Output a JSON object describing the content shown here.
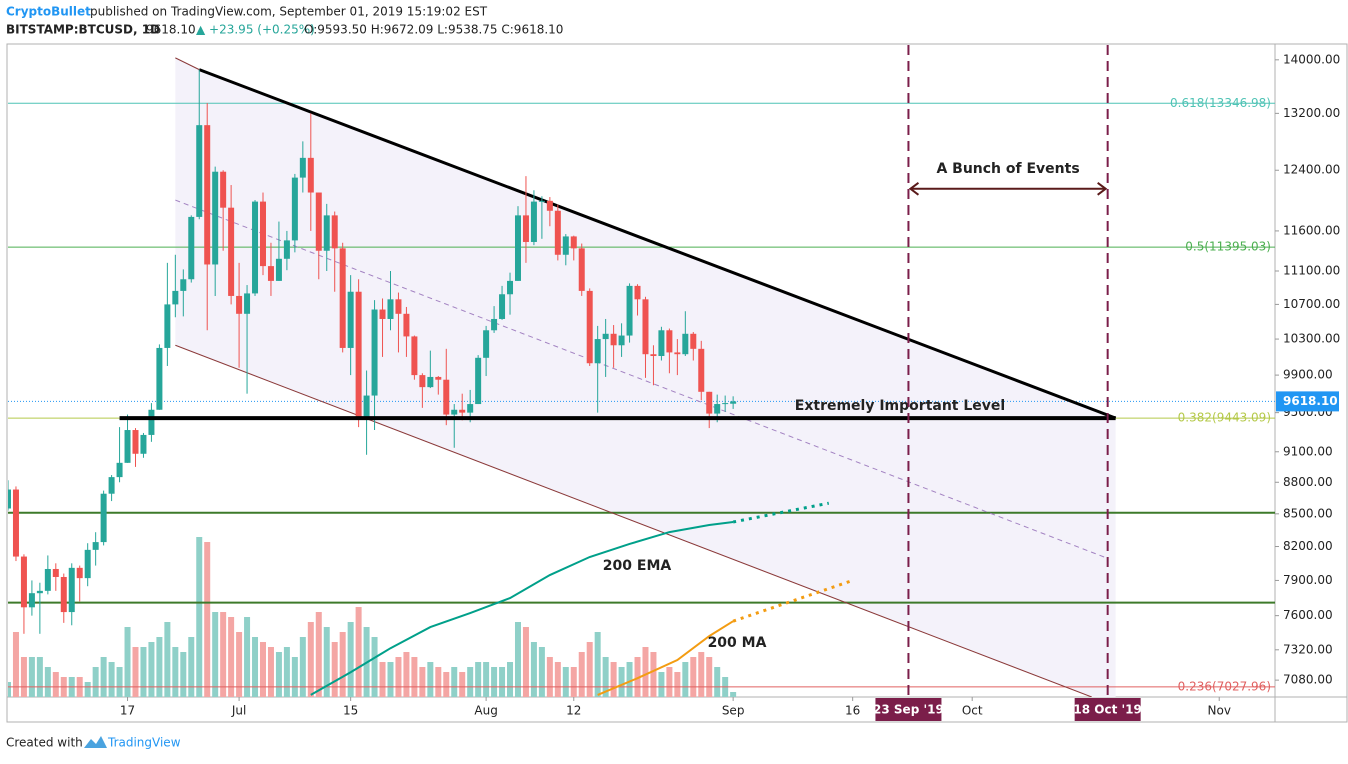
{
  "chart_data": {
    "type": "candlestick",
    "header": {
      "author": "CryptoBullet",
      "published": "published on TradingView.com, September 01, 2019 15:19:02 EST",
      "symbol": "BITSTAMP:BTCUSD, 1D",
      "last": "9618.10",
      "change": "▲ +23.95 (+0.25%)",
      "ohlc": "O:9593.50 H:9672.09 L:9538.75 C:9618.10"
    },
    "footer": {
      "prefix": "Created with",
      "brand": "TradingView"
    },
    "x": [
      "2019-06-02",
      "2019-06-03",
      "2019-06-04",
      "2019-06-05",
      "2019-06-06",
      "2019-06-07",
      "2019-06-08",
      "2019-06-09",
      "2019-06-10",
      "2019-06-11",
      "2019-06-12",
      "2019-06-13",
      "2019-06-14",
      "2019-06-15",
      "2019-06-16",
      "2019-06-17",
      "2019-06-18",
      "2019-06-19",
      "2019-06-20",
      "2019-06-21",
      "2019-06-22",
      "2019-06-23",
      "2019-06-24",
      "2019-06-25",
      "2019-06-26",
      "2019-06-27",
      "2019-06-28",
      "2019-06-29",
      "2019-06-30",
      "2019-07-01",
      "2019-07-02",
      "2019-07-03",
      "2019-07-04",
      "2019-07-05",
      "2019-07-06",
      "2019-07-07",
      "2019-07-08",
      "2019-07-09",
      "2019-07-10",
      "2019-07-11",
      "2019-07-12",
      "2019-07-13",
      "2019-07-14",
      "2019-07-15",
      "2019-07-16",
      "2019-07-17",
      "2019-07-18",
      "2019-07-19",
      "2019-07-20",
      "2019-07-21",
      "2019-07-22",
      "2019-07-23",
      "2019-07-24",
      "2019-07-25",
      "2019-07-26",
      "2019-07-27",
      "2019-07-28",
      "2019-07-29",
      "2019-07-30",
      "2019-07-31",
      "2019-08-01",
      "2019-08-02",
      "2019-08-03",
      "2019-08-04",
      "2019-08-05",
      "2019-08-06",
      "2019-08-07",
      "2019-08-08",
      "2019-08-09",
      "2019-08-10",
      "2019-08-11",
      "2019-08-12",
      "2019-08-13",
      "2019-08-14",
      "2019-08-15",
      "2019-08-16",
      "2019-08-17",
      "2019-08-18",
      "2019-08-19",
      "2019-08-20",
      "2019-08-21",
      "2019-08-22",
      "2019-08-23",
      "2019-08-24",
      "2019-08-25",
      "2019-08-26",
      "2019-08-27",
      "2019-08-28",
      "2019-08-29",
      "2019-08-30",
      "2019-08-31",
      "2019-09-01"
    ],
    "open": [
      8550,
      8730,
      8110,
      7670,
      7790,
      7810,
      8000,
      7930,
      7630,
      8010,
      7920,
      8170,
      8240,
      8690,
      8850,
      8990,
      9320,
      9080,
      9270,
      9530,
      10200,
      10700,
      10860,
      11000,
      11780,
      13030,
      11180,
      12380,
      11900,
      10800,
      10590,
      10830,
      11980,
      11160,
      10980,
      11250,
      11480,
      12300,
      12570,
      12100,
      11350,
      11800,
      11380,
      10200,
      10850,
      9430,
      9680,
      10640,
      10530,
      10760,
      10590,
      10330,
      9900,
      9770,
      9880,
      9850,
      9480,
      9530,
      9500,
      9590,
      10090,
      10400,
      10530,
      10820,
      10980,
      11800,
      11460,
      11980,
      11990,
      11860,
      11300,
      11530,
      11380,
      10860,
      10030,
      10300,
      10360,
      10230,
      10340,
      10920,
      10760,
      10130,
      10110,
      10400,
      10150,
      10130,
      10360,
      10190,
      9720,
      9490,
      9590,
      9593.5
    ],
    "high": [
      8820,
      8760,
      8130,
      7900,
      7880,
      8120,
      8050,
      7960,
      8050,
      8030,
      8230,
      8330,
      8720,
      8870,
      9350,
      9480,
      9340,
      9290,
      9600,
      10240,
      11200,
      11300,
      11120,
      11800,
      13850,
      13350,
      12450,
      12400,
      12200,
      11200,
      10930,
      12000,
      12100,
      11450,
      11720,
      11600,
      12350,
      12800,
      13200,
      12100,
      11950,
      11850,
      11450,
      11050,
      11000,
      9950,
      10750,
      10770,
      11100,
      10840,
      10670,
      10340,
      9920,
      10170,
      9890,
      10190,
      9590,
      9700,
      9740,
      10120,
      10450,
      10680,
      10920,
      11080,
      11920,
      12320,
      12130,
      12050,
      12040,
      11940,
      11560,
      11540,
      11440,
      10890,
      10450,
      10530,
      10460,
      10480,
      10950,
      10940,
      10790,
      10230,
      10440,
      10420,
      10300,
      10620,
      10380,
      10280,
      9720,
      9690,
      9680,
      9672.09
    ],
    "low": [
      8530,
      8070,
      7450,
      7600,
      7450,
      7780,
      7810,
      7540,
      7520,
      7720,
      7850,
      8030,
      8210,
      8620,
      8800,
      8990,
      8950,
      9040,
      9200,
      9530,
      10000,
      10550,
      10560,
      10960,
      11750,
      10400,
      10800,
      11350,
      10700,
      9980,
      9700,
      10800,
      11050,
      10800,
      10980,
      11110,
      11330,
      12100,
      11600,
      11000,
      11100,
      10850,
      10150,
      9900,
      9350,
      9070,
      9320,
      10100,
      10400,
      10150,
      10100,
      9850,
      9550,
      9760,
      9690,
      9370,
      9140,
      9420,
      9400,
      9590,
      9890,
      10370,
      10520,
      10580,
      10980,
      11200,
      11420,
      11500,
      11660,
      11230,
      11170,
      11230,
      10800,
      10000,
      9500,
      9880,
      9980,
      10100,
      10260,
      10570,
      9870,
      9790,
      10060,
      9920,
      9900,
      10110,
      10060,
      9630,
      9340,
      9400,
      9510,
      9538.75
    ],
    "close": [
      8730,
      8110,
      7670,
      7790,
      7810,
      8000,
      7930,
      7630,
      8010,
      7920,
      8170,
      8240,
      8690,
      8850,
      8990,
      9320,
      9080,
      9270,
      9530,
      10200,
      10700,
      10860,
      11000,
      11780,
      13030,
      11180,
      12380,
      11900,
      10800,
      10590,
      10830,
      11980,
      11160,
      10980,
      11250,
      11480,
      12300,
      12570,
      12100,
      11350,
      11800,
      11380,
      10200,
      10850,
      9430,
      9680,
      10640,
      10530,
      10760,
      10590,
      10330,
      9900,
      9770,
      9880,
      9850,
      9480,
      9530,
      9500,
      9590,
      10090,
      10400,
      10530,
      10820,
      10980,
      11800,
      11460,
      11980,
      11990,
      11860,
      11300,
      11530,
      11380,
      10860,
      10030,
      10300,
      10360,
      10230,
      10340,
      10920,
      10760,
      10130,
      10110,
      10400,
      10150,
      10130,
      10360,
      10190,
      9720,
      9490,
      9590,
      9600,
      9618.1
    ],
    "volume": [
      3,
      13,
      8,
      8,
      8,
      6,
      5,
      4,
      4,
      4,
      3,
      6,
      8,
      7,
      6,
      14,
      10,
      10,
      11,
      12,
      15,
      10,
      9,
      12,
      32,
      31,
      17,
      17,
      16,
      13,
      16,
      12,
      11,
      10,
      9,
      10,
      8,
      12,
      15,
      17,
      14,
      11,
      13,
      15,
      18,
      14,
      12,
      7,
      7,
      8,
      9,
      8,
      6,
      7,
      6,
      5,
      6,
      5,
      6,
      7,
      7,
      6,
      6,
      7,
      15,
      14,
      11,
      10,
      8,
      7,
      6,
      6,
      9,
      11,
      13,
      8,
      7,
      6,
      7,
      8,
      10,
      9,
      5,
      6,
      5,
      7,
      8,
      9,
      8,
      6,
      4,
      1
    ],
    "volume_lim": [
      0,
      36
    ],
    "colors": {
      "up": "#26a69a",
      "down": "#ef5350",
      "volume_up": "#8fd0c8",
      "volume_down": "#f4a6a4",
      "price_line": "#2196f3",
      "channel_fill": "#f4f2fa"
    },
    "log_scale": true,
    "ylim": [
      6950,
      14230
    ],
    "yticks": [
      {
        "value": 14000,
        "label": "14000.00"
      },
      {
        "value": 13200,
        "label": "13200.00"
      },
      {
        "value": 12400,
        "label": "12400.00"
      },
      {
        "value": 11600,
        "label": "11600.00"
      },
      {
        "value": 11100,
        "label": "11100.00"
      },
      {
        "value": 10700,
        "label": "10700.00"
      },
      {
        "value": 10300,
        "label": "10300.00"
      },
      {
        "value": 9900,
        "label": "9900.00"
      },
      {
        "value": 9500,
        "label": "9500.00"
      },
      {
        "value": 9100,
        "label": "9100.00"
      },
      {
        "value": 8800,
        "label": "8800.00"
      },
      {
        "value": 8500,
        "label": "8500.00"
      },
      {
        "value": 8200,
        "label": "8200.00"
      },
      {
        "value": 7900,
        "label": "7900.00"
      },
      {
        "value": 7600,
        "label": "7600.00"
      },
      {
        "value": 7320,
        "label": "7320.00"
      },
      {
        "value": 7080,
        "label": "7080.00"
      }
    ],
    "xlim": [
      "2019-06-02",
      "2019-11-08"
    ],
    "xticks": [
      {
        "value": "2019-06-17",
        "label": "17"
      },
      {
        "value": "2019-07-01",
        "label": "Jul"
      },
      {
        "value": "2019-07-15",
        "label": "15"
      },
      {
        "value": "2019-08-01",
        "label": "Aug"
      },
      {
        "value": "2019-08-12",
        "label": "12"
      },
      {
        "value": "2019-09-01",
        "label": "Sep"
      },
      {
        "value": "2019-09-16",
        "label": "16"
      },
      {
        "value": "2019-10-01",
        "label": "Oct"
      },
      {
        "value": "2019-11-01",
        "label": "Nov"
      }
    ],
    "current_price": {
      "value": 9618.1,
      "label": "9618.10"
    },
    "indicators": [
      {
        "name": "200 EMA",
        "color": "#00a08a",
        "x": [
          "2019-07-10",
          "2019-07-15",
          "2019-07-20",
          "2019-07-25",
          "2019-07-30",
          "2019-08-04",
          "2019-08-09",
          "2019-08-14",
          "2019-08-19",
          "2019-08-24",
          "2019-08-29",
          "2019-09-01"
        ],
        "values": [
          6966,
          7142,
          7333,
          7505,
          7622,
          7748,
          7947,
          8106,
          8223,
          8331,
          8396,
          8424
        ],
        "projection": {
          "x": [
            "2019-09-01",
            "2019-09-13"
          ],
          "values": [
            8424,
            8600
          ]
        }
      },
      {
        "name": "200 MA",
        "color": "#f39c12",
        "x": [
          "2019-08-15",
          "2019-08-20",
          "2019-08-25",
          "2019-08-29",
          "2019-09-01"
        ],
        "values": [
          6966,
          7095,
          7238,
          7431,
          7554
        ],
        "projection": {
          "x": [
            "2019-09-01",
            "2019-09-16"
          ],
          "values": [
            7554,
            7900
          ]
        }
      }
    ],
    "fib_levels": [
      {
        "value": 13346.98,
        "label": "0.618(13346.98)",
        "color": "#4fc3b5"
      },
      {
        "value": 11395.03,
        "label": "0.5(11395.03)",
        "color": "#4caf50"
      },
      {
        "value": 9443.09,
        "label": "0.382(9443.09)",
        "color": "#b5c94a"
      },
      {
        "value": 7027.96,
        "label": "0.236(7027.96)",
        "color": "#e06060"
      }
    ],
    "support_lines": [
      {
        "value": 8510,
        "color": "#3d7a2a"
      },
      {
        "value": 7710,
        "color": "#3d7a2a"
      }
    ],
    "key_level": {
      "label": "Extremely Important Level",
      "value": 9443,
      "from": "2019-06-16",
      "to": "2019-10-19"
    },
    "trendlines": [
      {
        "points": [
          [
            "2019-06-26",
            13850
          ],
          [
            "2019-10-19",
            9443
          ]
        ],
        "color": "#000000",
        "width": 3
      },
      {
        "points": [
          [
            "2019-06-23",
            14030
          ],
          [
            "2019-06-26",
            13850
          ]
        ],
        "color": "#8b3a3a",
        "width": 1
      },
      {
        "points": [
          [
            "2019-06-23",
            10230
          ],
          [
            "2019-10-16",
            6950
          ]
        ],
        "color": "#8b3a3a",
        "width": 1
      },
      {
        "points": [
          [
            "2019-06-23",
            12000
          ],
          [
            "2019-10-18",
            8094
          ]
        ],
        "color": "#a383c2",
        "width": 1,
        "dashed": true
      }
    ],
    "events": {
      "label": "A Bunch of Events",
      "color": "#7b1e4a",
      "price": 12150,
      "start": {
        "value": "2019-09-23",
        "label": "23 Sep '19"
      },
      "end": {
        "value": "2019-10-18",
        "label": "18 Oct '19"
      }
    }
  }
}
